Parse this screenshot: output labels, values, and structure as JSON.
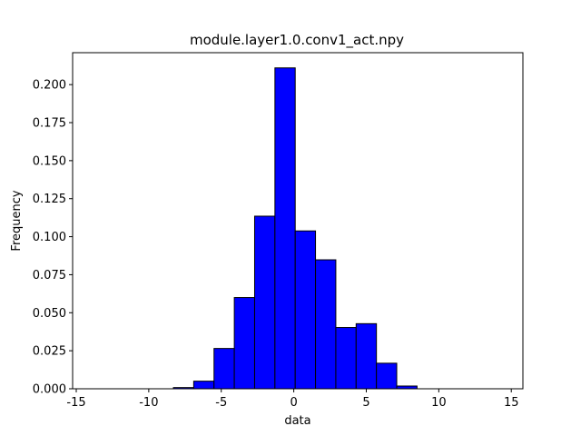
{
  "chart_data": {
    "type": "bar",
    "title": "module.layer1.0.conv1_act.npy",
    "xlabel": "data",
    "ylabel": "Frequency",
    "xlim": [
      -15.25,
      15.8
    ],
    "ylim": [
      0,
      0.221
    ],
    "xticks": [
      -15,
      -10,
      -5,
      0,
      5,
      10,
      15
    ],
    "xtick_labels": [
      "-15",
      "-10",
      "-5",
      "0",
      "5",
      "10",
      "15"
    ],
    "yticks": [
      0.0,
      0.025,
      0.05,
      0.075,
      0.1,
      0.125,
      0.15,
      0.175,
      0.2
    ],
    "ytick_labels": [
      "0.000",
      "0.025",
      "0.050",
      "0.075",
      "0.100",
      "0.125",
      "0.150",
      "0.175",
      "0.200"
    ],
    "bar_color": "#0000ff",
    "edge_color": "#000000",
    "grid": false,
    "bins": [
      {
        "x0": -13.9,
        "x1": -12.5,
        "value": 0.0
      },
      {
        "x0": -12.5,
        "x1": -11.1,
        "value": 0.0
      },
      {
        "x0": -11.1,
        "x1": -9.7,
        "value": 0.0
      },
      {
        "x0": -9.7,
        "x1": -8.3,
        "value": 0.0
      },
      {
        "x0": -8.3,
        "x1": -6.9,
        "value": 0.0008
      },
      {
        "x0": -6.9,
        "x1": -5.5,
        "value": 0.005
      },
      {
        "x0": -5.5,
        "x1": -4.1,
        "value": 0.0265
      },
      {
        "x0": -4.1,
        "x1": -2.7,
        "value": 0.06
      },
      {
        "x0": -2.7,
        "x1": -1.3,
        "value": 0.1135
      },
      {
        "x0": -1.3,
        "x1": 0.1,
        "value": 0.211
      },
      {
        "x0": 0.1,
        "x1": 1.5,
        "value": 0.1038
      },
      {
        "x0": 1.5,
        "x1": 2.9,
        "value": 0.0848
      },
      {
        "x0": 2.9,
        "x1": 4.3,
        "value": 0.0403
      },
      {
        "x0": 4.3,
        "x1": 5.7,
        "value": 0.0428
      },
      {
        "x0": 5.7,
        "x1": 7.1,
        "value": 0.0168
      },
      {
        "x0": 7.1,
        "x1": 8.5,
        "value": 0.0018
      },
      {
        "x0": 8.5,
        "x1": 9.9,
        "value": 0.0
      },
      {
        "x0": 9.9,
        "x1": 11.3,
        "value": 0.0
      },
      {
        "x0": 11.3,
        "x1": 12.7,
        "value": 0.0
      },
      {
        "x0": 12.7,
        "x1": 14.4,
        "value": 0.0
      }
    ]
  }
}
